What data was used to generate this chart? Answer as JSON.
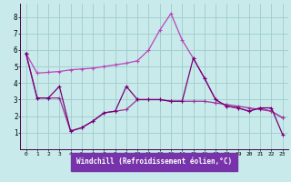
{
  "xlabel": "Windchill (Refroidissement éolien,°C)",
  "background_color": "#c8eaea",
  "grid_color": "#a0cccc",
  "line_color1": "#bb44bb",
  "line_color2": "#993399",
  "line_color3": "#770077",
  "xlabel_bg": "#7733aa",
  "xlim": [
    -0.5,
    23.5
  ],
  "ylim": [
    0,
    8.8
  ],
  "xticks": [
    0,
    1,
    2,
    3,
    4,
    5,
    6,
    7,
    8,
    9,
    10,
    11,
    12,
    13,
    14,
    15,
    16,
    17,
    18,
    19,
    20,
    21,
    22,
    23
  ],
  "yticks": [
    1,
    2,
    3,
    4,
    5,
    6,
    7,
    8
  ],
  "series1_x": [
    0,
    1,
    2,
    3,
    4,
    5,
    6,
    7,
    8,
    9,
    10,
    11,
    12,
    13,
    14,
    15,
    16,
    17,
    18,
    19,
    20,
    21,
    22,
    23
  ],
  "series1_y": [
    5.8,
    4.6,
    4.65,
    4.7,
    4.8,
    4.85,
    4.9,
    5.0,
    5.1,
    5.2,
    5.35,
    6.0,
    7.2,
    8.2,
    6.6,
    5.5,
    4.3,
    3.0,
    2.6,
    2.5,
    2.3,
    2.5,
    2.3,
    1.9
  ],
  "series2_x": [
    0,
    1,
    2,
    3,
    4,
    5,
    6,
    7,
    8,
    9,
    10,
    11,
    12,
    13,
    14,
    15,
    16,
    17,
    18,
    19,
    20,
    21,
    22,
    23
  ],
  "series2_y": [
    5.8,
    3.1,
    3.1,
    3.1,
    1.1,
    1.3,
    1.7,
    2.2,
    2.3,
    2.4,
    3.0,
    3.0,
    3.0,
    2.9,
    2.9,
    2.9,
    2.9,
    2.8,
    2.7,
    2.6,
    2.5,
    2.4,
    2.3,
    1.9
  ],
  "series3_x": [
    0,
    1,
    2,
    3,
    4,
    5,
    6,
    7,
    8,
    9,
    10,
    11,
    12,
    13,
    14,
    15,
    16,
    17,
    18,
    19,
    20,
    21,
    22,
    23
  ],
  "series3_y": [
    5.8,
    3.1,
    3.1,
    3.8,
    1.1,
    1.3,
    1.7,
    2.2,
    2.3,
    3.8,
    3.0,
    3.0,
    3.0,
    2.9,
    2.9,
    5.5,
    4.3,
    3.0,
    2.6,
    2.5,
    2.3,
    2.5,
    2.5,
    0.9
  ]
}
